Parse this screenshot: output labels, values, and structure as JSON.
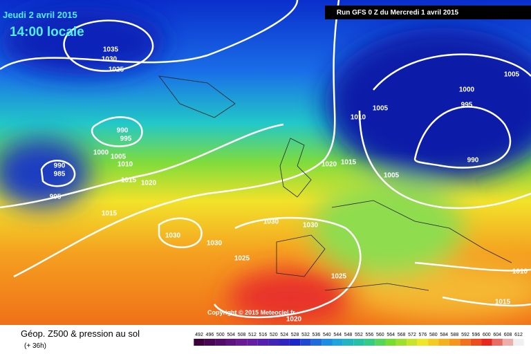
{
  "header": {
    "date": "Jeudi 2 avril 2015",
    "time": "14:00 locale",
    "run": "Run GFS 0 Z du Mercredi 1 avril 2015"
  },
  "copyright": "Copyright © 2015 Meteociel.fr",
  "footer": {
    "title": "Géop. Z500 & pression au sol",
    "lead": "(+ 36h)"
  },
  "isobars": [
    1035,
    1030,
    1025,
    1005,
    1000,
    995,
    1005,
    1010,
    990,
    995,
    1000,
    1005,
    1010,
    990,
    985,
    1020,
    1015,
    990,
    1015,
    1020,
    1005,
    995,
    1015,
    1030,
    1030,
    1030,
    1030,
    1025,
    1010,
    1025,
    1015,
    1020
  ],
  "legend": {
    "labels": [
      492,
      496,
      500,
      504,
      508,
      512,
      516,
      520,
      524,
      528,
      532,
      536,
      540,
      544,
      548,
      552,
      556,
      560,
      564,
      568,
      572,
      576,
      580,
      584,
      588,
      592,
      596,
      600,
      604,
      608,
      612
    ]
  }
}
